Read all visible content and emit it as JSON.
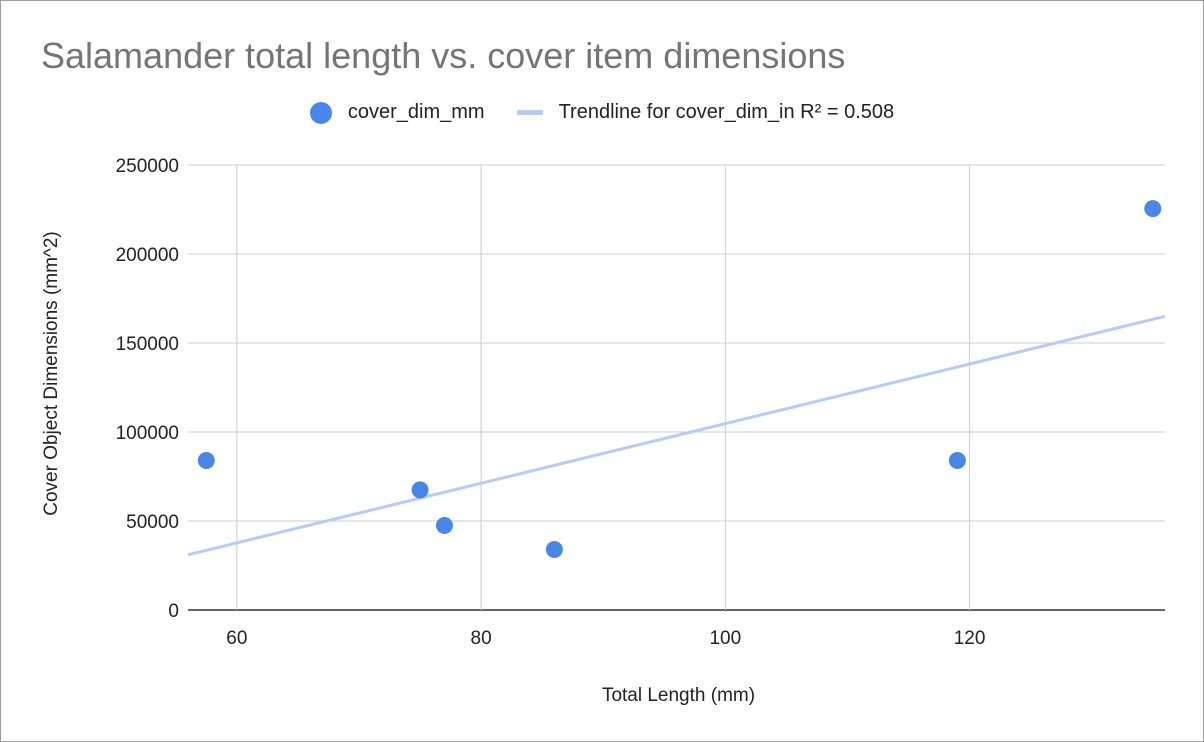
{
  "chart_data": {
    "type": "scatter",
    "title": "Salamander total length vs. cover item dimensions",
    "xlabel": "Total Length (mm)",
    "ylabel": "Cover Object Dimensions (mm^2)",
    "xlim": [
      56,
      136
    ],
    "ylim": [
      0,
      250000
    ],
    "xticks": [
      60,
      80,
      100,
      120
    ],
    "yticks": [
      0,
      50000,
      100000,
      150000,
      200000,
      250000
    ],
    "grid": true,
    "legend_position": "top",
    "series": [
      {
        "name": "cover_dim_mm",
        "color": "#4a86e8",
        "points": [
          {
            "x": 57.5,
            "y": 84000
          },
          {
            "x": 75,
            "y": 67500
          },
          {
            "x": 77,
            "y": 47500
          },
          {
            "x": 86,
            "y": 34000
          },
          {
            "x": 119,
            "y": 84000
          },
          {
            "x": 135,
            "y": 225500
          }
        ]
      }
    ],
    "trendline": {
      "name": "Trendline for cover_dim_in R² = 0.508",
      "color": "#b7ccf4",
      "x": [
        56,
        136
      ],
      "y": [
        31000,
        165000
      ]
    }
  }
}
